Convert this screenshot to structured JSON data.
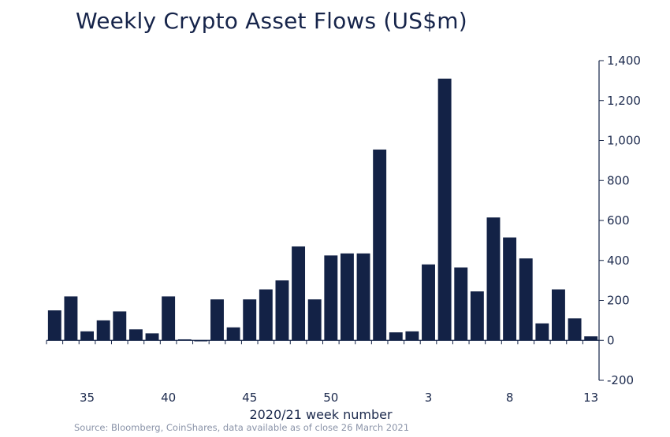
{
  "colors": {
    "bar": "#132246",
    "axis": "#132246",
    "title": "#16244a",
    "text": "#1c2a4d",
    "source": "#8a93a8"
  },
  "chart_data": {
    "type": "bar",
    "title": "Weekly Crypto Asset Flows (US$m)",
    "xlabel": "2020/21 week number",
    "ylabel": "",
    "source": "Source: Bloomberg, CoinShares, data available as of close 26 March 2021",
    "categories": [
      33,
      34,
      35,
      36,
      37,
      38,
      39,
      40,
      41,
      42,
      43,
      44,
      45,
      46,
      47,
      48,
      49,
      50,
      51,
      52,
      53,
      1,
      2,
      3,
      4,
      5,
      6,
      7,
      8,
      9,
      10,
      11,
      12,
      13
    ],
    "values": [
      150,
      220,
      45,
      100,
      145,
      55,
      35,
      220,
      5,
      -5,
      205,
      65,
      205,
      255,
      300,
      470,
      205,
      425,
      435,
      435,
      955,
      40,
      45,
      380,
      1310,
      365,
      245,
      615,
      515,
      410,
      85,
      255,
      110,
      20
    ],
    "x_tick_labels": [
      {
        "label": "35",
        "category": 35
      },
      {
        "label": "40",
        "category": 40
      },
      {
        "label": "45",
        "category": 45
      },
      {
        "label": "50",
        "category": 50
      },
      {
        "label": "3",
        "category": 3
      },
      {
        "label": "8",
        "category": 8
      },
      {
        "label": "13",
        "category": 13
      }
    ],
    "y_ticks": [
      1400,
      1200,
      1000,
      800,
      600,
      400,
      200,
      0,
      -200
    ],
    "y_tick_labels": [
      "1,400",
      "1,200",
      "1,000",
      "800",
      "600",
      "400",
      "200",
      "0",
      "-200"
    ],
    "ylim": [
      -200,
      1400
    ],
    "y_axis_side": "right",
    "grid": false,
    "legend": "none"
  }
}
